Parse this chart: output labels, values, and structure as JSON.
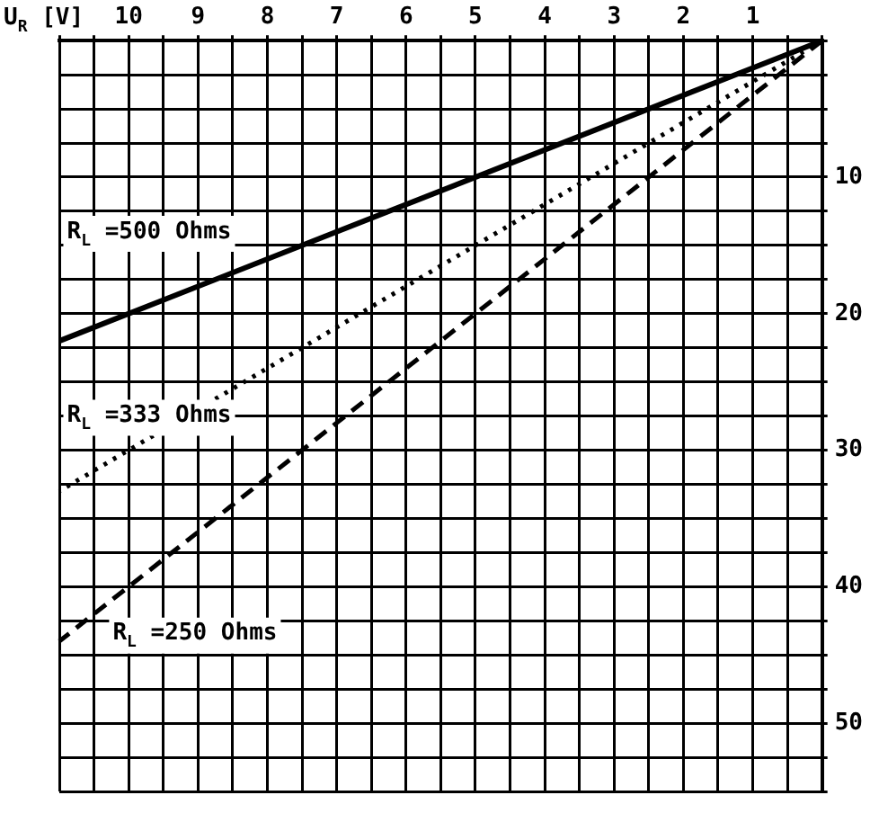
{
  "chart_data": {
    "type": "line",
    "xlabel": "U$_{R}$ [V]",
    "xlim": [
      11,
      0
    ],
    "ylim": [
      55,
      0
    ],
    "xticks": [
      {
        "value": 0,
        "label": null
      },
      {
        "value": 0.5,
        "label": null
      },
      1,
      {
        "value": 1.5,
        "label": null
      },
      2,
      {
        "value": 2.5,
        "label": null
      },
      3,
      {
        "value": 3.5,
        "label": null
      },
      4,
      {
        "value": 4.5,
        "label": null
      },
      5,
      {
        "value": 5.5,
        "label": null
      },
      6,
      {
        "value": 6.5,
        "label": null
      },
      7,
      {
        "value": 7.5,
        "label": null
      },
      8,
      {
        "value": 8.5,
        "label": null
      },
      9,
      {
        "value": 9.5,
        "label": null
      },
      10,
      {
        "value": 10.5,
        "label": null
      },
      {
        "value": 11,
        "label": null
      }
    ],
    "yticks": [
      {
        "value": 0,
        "label": null
      },
      {
        "value": 2.5,
        "label": null
      },
      {
        "value": 5,
        "label": null
      },
      {
        "value": 7.5,
        "label": null
      },
      10,
      {
        "value": 12.5,
        "label": null
      },
      {
        "value": 15,
        "label": null
      },
      {
        "value": 17.5,
        "label": null
      },
      20,
      {
        "value": 22.5,
        "label": null
      },
      {
        "value": 25,
        "label": null
      },
      {
        "value": 27.5,
        "label": null
      },
      30,
      {
        "value": 32.5,
        "label": null
      },
      {
        "value": 35,
        "label": null
      },
      {
        "value": 37.5,
        "label": null
      },
      40,
      {
        "value": 42.5,
        "label": null
      },
      {
        "value": 45,
        "label": null
      },
      {
        "value": 47.5,
        "label": null
      },
      50,
      {
        "value": 52.5,
        "label": null
      },
      {
        "value": 55,
        "label": null
      }
    ],
    "grid": true,
    "legend": false,
    "marker": "none",
    "x": [
      0,
      11
    ],
    "series": [
      {
        "color": "#000000",
        "line_style": "solid",
        "values": [
          0,
          22
        ]
      },
      {
        "color": "#000000",
        "line_style": "dotted",
        "values": [
          0,
          33
        ]
      },
      {
        "color": "#000000",
        "line_style": "dashed",
        "values": [
          0,
          44
        ]
      }
    ],
    "annotations": [
      "R$_{L}$ =500 Ohms",
      "R$_{L}$ =333 Ohms",
      "R$_{L}$ =250 Ohms"
    ]
  }
}
